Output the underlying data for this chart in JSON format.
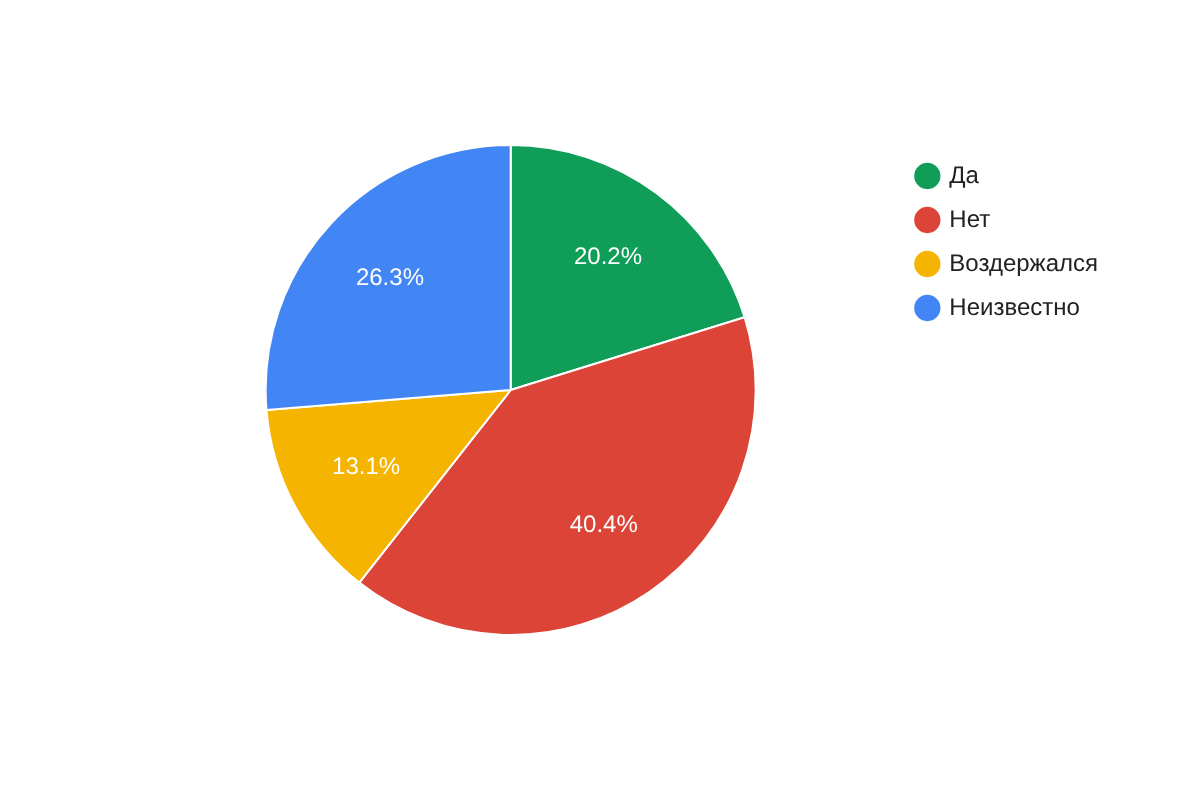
{
  "chart_data": {
    "type": "pie",
    "categories": [
      "Да",
      "Нет",
      "Воздержался",
      "Неизвестно"
    ],
    "values": [
      20.2,
      40.4,
      13.1,
      26.3
    ],
    "colors": [
      "#0f9d58",
      "#db4437",
      "#f4b400",
      "#4285f4"
    ],
    "value_labels": [
      "20.2%",
      "40.4%",
      "13.1%",
      "26.3%"
    ],
    "legend": "top right"
  }
}
